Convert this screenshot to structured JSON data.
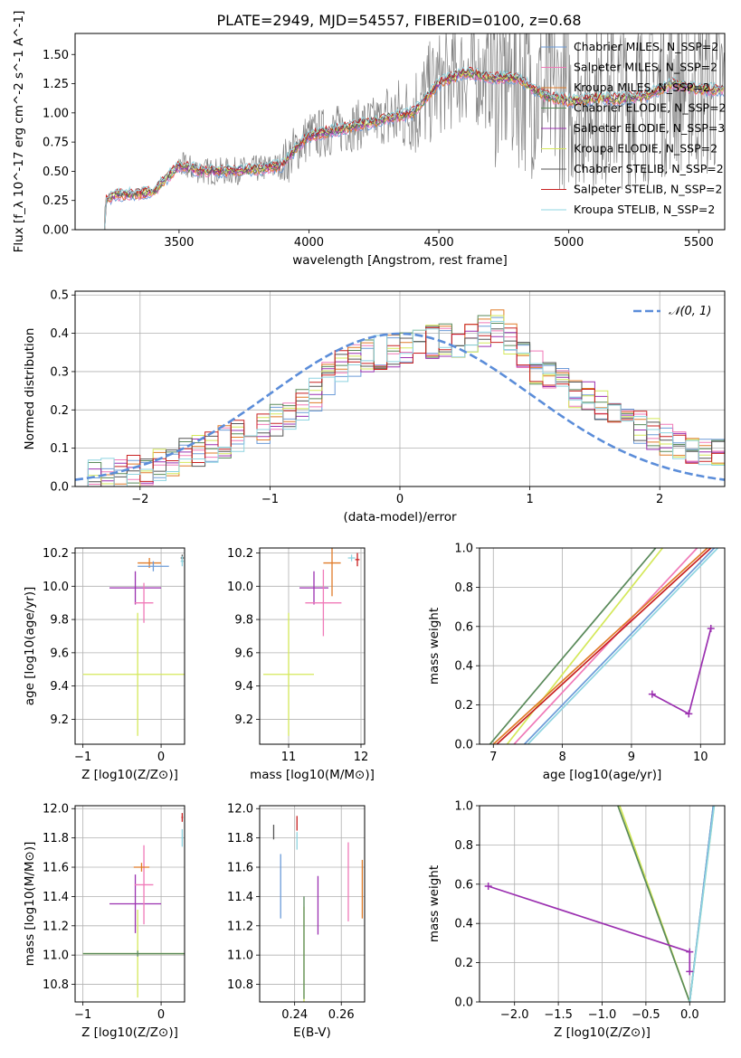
{
  "figure": {
    "suptitle": "PLATE=2949, MJD=54557, FIBERID=0100, z=0.68"
  },
  "chart_data": [
    {
      "id": "spectrum",
      "type": "line",
      "title": "PLATE=2949, MJD=54557, FIBERID=0100, z=0.68",
      "xlabel": "wavelength [Angstrom, rest frame]",
      "ylabel": "Flux [f_λ 10^-17 erg cm^-2 s^-1 A^-1]",
      "xlim": [
        3100,
        5600
      ],
      "ylim": [
        0,
        1.68
      ],
      "xticks": [
        3500,
        4000,
        4500,
        5000,
        5500
      ],
      "yticks": [
        0.0,
        0.25,
        0.5,
        0.75,
        1.0,
        1.25,
        1.5
      ],
      "ytick_labels": [
        "0.00",
        "0.25",
        "0.50",
        "0.75",
        "1.00",
        "1.25",
        "1.50"
      ],
      "grid": false,
      "legend_position": "top-right",
      "data_line": {
        "color": "#808080"
      },
      "model_profile": {
        "x": [
          3100,
          3200,
          3220,
          3260,
          3300,
          3400,
          3500,
          3600,
          3700,
          3800,
          3900,
          3950,
          4000,
          4100,
          4200,
          4300,
          4400,
          4500,
          4600,
          4700,
          4800,
          4900,
          5000,
          5100,
          5200,
          5300,
          5400,
          5500
        ],
        "y": [
          0.0,
          0.0,
          0.26,
          0.3,
          0.3,
          0.32,
          0.55,
          0.5,
          0.5,
          0.52,
          0.55,
          0.7,
          0.8,
          0.85,
          0.9,
          0.95,
          1.0,
          1.25,
          1.35,
          1.3,
          1.3,
          1.15,
          1.1,
          1.12,
          1.12,
          1.15,
          1.25,
          1.2
        ]
      },
      "series": [
        {
          "name": "Chabrier MILES, N_SSP=2",
          "color": "#6b9bd8"
        },
        {
          "name": "Salpeter MILES, N_SSP=2",
          "color": "#f07ab8"
        },
        {
          "name": "Kroupa MILES, N_SSP=2",
          "color": "#e07b28"
        },
        {
          "name": "Chabrier ELODIE, N_SSP=2",
          "color": "#5a8a5a"
        },
        {
          "name": "Salpeter ELODIE, N_SSP=3",
          "color": "#9b30b0"
        },
        {
          "name": "Kroupa ELODIE, N_SSP=2",
          "color": "#d4e85a"
        },
        {
          "name": "Chabrier STELIB, N_SSP=2",
          "color": "#555555"
        },
        {
          "name": "Salpeter STELIB, N_SSP=2",
          "color": "#c82020"
        },
        {
          "name": "Kroupa STELIB, N_SSP=2",
          "color": "#8fd4e0"
        }
      ]
    },
    {
      "id": "residuals",
      "type": "line",
      "xlabel": "(data-model)/error",
      "ylabel": "Normed distribution",
      "xlim": [
        -2.5,
        2.5
      ],
      "ylim": [
        0,
        0.51
      ],
      "xticks": [
        -2,
        -1,
        0,
        1,
        2
      ],
      "xtick_labels": [
        "−2",
        "−1",
        "0",
        "1",
        "2"
      ],
      "yticks": [
        0.0,
        0.1,
        0.2,
        0.3,
        0.4,
        0.5
      ],
      "ytick_labels": [
        "0.0",
        "0.1",
        "0.2",
        "0.3",
        "0.4",
        "0.5"
      ],
      "grid": true,
      "legend_position": "top-right",
      "gaussian": {
        "name": "𝒩(0, 1)",
        "color": "#5b8dd9",
        "mean": 0,
        "sigma": 1
      },
      "histogram_bins": [
        -2.5,
        2.5,
        0.1
      ],
      "histogram_profile": {
        "x": [
          -2.5,
          -2.0,
          -1.5,
          -1.0,
          -0.7,
          -0.5,
          -0.3,
          0.0,
          0.3,
          0.5,
          0.75,
          1.0,
          1.5,
          2.0,
          2.5
        ],
        "y": [
          0.02,
          0.04,
          0.1,
          0.16,
          0.22,
          0.3,
          0.34,
          0.36,
          0.38,
          0.38,
          0.42,
          0.32,
          0.22,
          0.13,
          0.08
        ]
      }
    },
    {
      "id": "age-vs-Z",
      "type": "scatter",
      "xlabel": "Z [log10(Z/Z⊙)]",
      "ylabel": "age  [log10(age/yr)]",
      "xlim": [
        -1.1,
        0.3
      ],
      "ylim": [
        9.05,
        10.23
      ],
      "xticks": [
        -1,
        0
      ],
      "xtick_labels": [
        "−1",
        "0"
      ],
      "yticks": [
        9.2,
        9.4,
        9.6,
        9.8,
        10.0,
        10.2
      ],
      "ytick_labels": [
        "9.2",
        "9.4",
        "9.6",
        "9.8",
        "10.0",
        "10.2"
      ],
      "grid": true,
      "points": [
        {
          "color": "#d4e85a",
          "x": -0.3,
          "y": 9.47,
          "xerr": 0.7,
          "yerr": 0.37
        },
        {
          "color": "#9b30b0",
          "x": -0.33,
          "y": 9.99,
          "xerr": 0.33,
          "yerr": 0.1
        },
        {
          "color": "#f07ab8",
          "x": -0.22,
          "y": 9.9,
          "xerr": 0.12,
          "yerr": 0.12
        },
        {
          "color": "#e07b28",
          "x": -0.15,
          "y": 10.14,
          "xerr": 0.15,
          "yerr": 0.03
        },
        {
          "color": "#6b9bd8",
          "x": -0.1,
          "y": 10.12,
          "xerr": 0.2,
          "yerr": 0.03
        },
        {
          "color": "#555555",
          "x": 0.27,
          "y": 10.17,
          "xerr": 0.02,
          "yerr": 0.02
        },
        {
          "color": "#8fd4e0",
          "x": 0.27,
          "y": 10.15,
          "xerr": 0.02,
          "yerr": 0.03
        }
      ]
    },
    {
      "id": "age-vs-mass",
      "type": "scatter",
      "xlabel": "mass [log10(M/M⊙)]",
      "ylabel": "",
      "xlim": [
        10.6,
        12.05
      ],
      "ylim": [
        9.05,
        10.23
      ],
      "xticks": [
        11,
        12
      ],
      "xtick_labels": [
        "11",
        "12"
      ],
      "yticks": [
        9.2,
        9.4,
        9.6,
        9.8,
        10.0,
        10.2
      ],
      "ytick_labels": [
        "9.2",
        "9.4",
        "9.6",
        "9.8",
        "10.0",
        "10.2"
      ],
      "grid": true,
      "points": [
        {
          "color": "#d4e85a",
          "x": 11.0,
          "y": 9.47,
          "xerr": 0.35,
          "yerr": 0.37
        },
        {
          "color": "#9b30b0",
          "x": 11.35,
          "y": 9.99,
          "xerr": 0.2,
          "yerr": 0.1
        },
        {
          "color": "#f07ab8",
          "x": 11.48,
          "y": 9.9,
          "xerr": 0.25,
          "yerr": 0.2
        },
        {
          "color": "#e07b28",
          "x": 11.6,
          "y": 10.14,
          "xerr": 0.12,
          "yerr": 0.2
        },
        {
          "color": "#c82020",
          "x": 11.95,
          "y": 10.16,
          "xerr": 0.03,
          "yerr": 0.04
        },
        {
          "color": "#8fd4e0",
          "x": 11.87,
          "y": 10.17,
          "xerr": 0.05,
          "yerr": 0.02
        }
      ]
    },
    {
      "id": "mass-weight-vs-age",
      "type": "line",
      "xlabel": "age  [log10(age/yr)]",
      "ylabel": "mass weight",
      "xlim": [
        6.8,
        10.35
      ],
      "ylim": [
        0,
        1.0
      ],
      "xticks": [
        7,
        8,
        9,
        10
      ],
      "xtick_labels": [
        "7",
        "8",
        "9",
        "10"
      ],
      "yticks": [
        0.0,
        0.2,
        0.4,
        0.6,
        0.8,
        1.0
      ],
      "ytick_labels": [
        "0.0",
        "0.2",
        "0.4",
        "0.6",
        "0.8",
        "1.0"
      ],
      "grid": true,
      "lines": [
        {
          "color": "#5a8a5a",
          "x": [
            6.95,
            9.35
          ],
          "y": [
            0,
            1.0
          ]
        },
        {
          "color": "#d4e85a",
          "x": [
            7.2,
            9.45
          ],
          "y": [
            0,
            1.0
          ]
        },
        {
          "color": "#f07ab8",
          "x": [
            7.3,
            9.95
          ],
          "y": [
            0,
            1.0
          ]
        },
        {
          "color": "#e07b28",
          "x": [
            7.0,
            10.1
          ],
          "y": [
            0,
            1.0
          ]
        },
        {
          "color": "#c82020",
          "x": [
            7.05,
            10.15
          ],
          "y": [
            0,
            1.0
          ]
        },
        {
          "color": "#6b9bd8",
          "x": [
            7.45,
            10.2
          ],
          "y": [
            0,
            1.0
          ]
        },
        {
          "color": "#8fd4e0",
          "x": [
            7.5,
            10.25
          ],
          "y": [
            0,
            1.0
          ]
        },
        {
          "color": "#9b30b0",
          "x": [
            9.3,
            9.83,
            10.15
          ],
          "y": [
            0.255,
            0.155,
            0.59
          ],
          "markers": true
        }
      ]
    },
    {
      "id": "mass-vs-Z",
      "type": "scatter",
      "xlabel": "Z [log10(Z/Z⊙)]",
      "ylabel": "mass [log10(M/M⊙)]",
      "xlim": [
        -1.1,
        0.3
      ],
      "ylim": [
        10.68,
        12.02
      ],
      "xticks": [
        -1,
        0
      ],
      "xtick_labels": [
        "−1",
        "0"
      ],
      "yticks": [
        10.8,
        11.0,
        11.2,
        11.4,
        11.6,
        11.8,
        12.0
      ],
      "ytick_labels": [
        "10.8",
        "11.0",
        "11.2",
        "11.4",
        "11.6",
        "11.8",
        "12.0"
      ],
      "grid": true,
      "points": [
        {
          "color": "#d4e85a",
          "x": -0.3,
          "y": 11.01,
          "xerr": 0.7,
          "yerr": 0.3
        },
        {
          "color": "#5a8a5a",
          "x": -0.3,
          "y": 11.01,
          "xerr": 0.7,
          "yerr": 0.02
        },
        {
          "color": "#9b30b0",
          "x": -0.33,
          "y": 11.35,
          "xerr": 0.33,
          "yerr": 0.2
        },
        {
          "color": "#f07ab8",
          "x": -0.22,
          "y": 11.48,
          "xerr": 0.12,
          "yerr": 0.27
        },
        {
          "color": "#e07b28",
          "x": -0.25,
          "y": 11.6,
          "xerr": 0.1,
          "yerr": 0.03
        },
        {
          "color": "#c82020",
          "x": 0.27,
          "y": 11.94,
          "xerr": 0.01,
          "yerr": 0.03
        },
        {
          "color": "#8fd4e0",
          "x": 0.27,
          "y": 11.8,
          "xerr": 0.01,
          "yerr": 0.06
        }
      ]
    },
    {
      "id": "mass-vs-EBV",
      "type": "scatter",
      "xlabel": "E(B-V)",
      "ylabel": "",
      "xlim": [
        0.225,
        0.27
      ],
      "ylim": [
        10.68,
        12.02
      ],
      "xticks": [
        0.24,
        0.26
      ],
      "xtick_labels": [
        "0.24",
        "0.26"
      ],
      "yticks": [
        10.8,
        11.0,
        11.2,
        11.4,
        11.6,
        11.8,
        12.0
      ],
      "ytick_labels": [
        "10.8",
        "11.0",
        "11.2",
        "11.4",
        "11.6",
        "11.8",
        "12.0"
      ],
      "grid": true,
      "points": [
        {
          "color": "#555555",
          "x": 0.231,
          "y": 11.84,
          "xerr": 0,
          "yerr": 0.05
        },
        {
          "color": "#c82020",
          "x": 0.241,
          "y": 11.9,
          "xerr": 0,
          "yerr": 0.05
        },
        {
          "color": "#8fd4e0",
          "x": 0.241,
          "y": 11.78,
          "xerr": 0,
          "yerr": 0.06
        },
        {
          "color": "#6b9bd8",
          "x": 0.234,
          "y": 11.47,
          "xerr": 0,
          "yerr": 0.22
        },
        {
          "color": "#d4e85a",
          "x": 0.244,
          "y": 11.0,
          "xerr": 0,
          "yerr": 0.33
        },
        {
          "color": "#5a8a5a",
          "x": 0.244,
          "y": 11.05,
          "xerr": 0,
          "yerr": 0.35
        },
        {
          "color": "#9b30b0",
          "x": 0.25,
          "y": 11.34,
          "xerr": 0,
          "yerr": 0.2
        },
        {
          "color": "#f07ab8",
          "x": 0.263,
          "y": 11.5,
          "xerr": 0,
          "yerr": 0.27
        },
        {
          "color": "#e07b28",
          "x": 0.269,
          "y": 11.45,
          "xerr": 0,
          "yerr": 0.2
        }
      ]
    },
    {
      "id": "mass-weight-vs-Z",
      "type": "line",
      "xlabel": "Z [log10(Z/Z⊙)]",
      "ylabel": "mass weight",
      "xlim": [
        -2.4,
        0.4
      ],
      "ylim": [
        0,
        1.0
      ],
      "xticks": [
        -2.0,
        -1.5,
        -1.0,
        -0.5,
        0.0
      ],
      "xtick_labels": [
        "−2.0",
        "−1.5",
        "−1.0",
        "−0.5",
        "0.0"
      ],
      "yticks": [
        0.0,
        0.2,
        0.4,
        0.6,
        0.8,
        1.0
      ],
      "ytick_labels": [
        "0.0",
        "0.2",
        "0.4",
        "0.6",
        "0.8",
        "1.0"
      ],
      "grid": true,
      "lines": [
        {
          "color": "#d4e85a",
          "x": [
            -0.8,
            0.0,
            0.28
          ],
          "y": [
            1.0,
            0,
            1.0
          ]
        },
        {
          "color": "#5a8a5a",
          "x": [
            -0.82,
            0.0,
            0.27
          ],
          "y": [
            1.0,
            0,
            1.0
          ]
        },
        {
          "color": "#6b9bd8",
          "x": [
            0.0,
            0.27
          ],
          "y": [
            0,
            1.0
          ]
        },
        {
          "color": "#8fd4e0",
          "x": [
            0.0,
            0.28
          ],
          "y": [
            0,
            1.0
          ]
        },
        {
          "color": "#9b30b0",
          "x": [
            -2.3,
            0.0,
            0.0
          ],
          "y": [
            0.59,
            0.255,
            0.155
          ],
          "markers": true
        }
      ]
    }
  ]
}
